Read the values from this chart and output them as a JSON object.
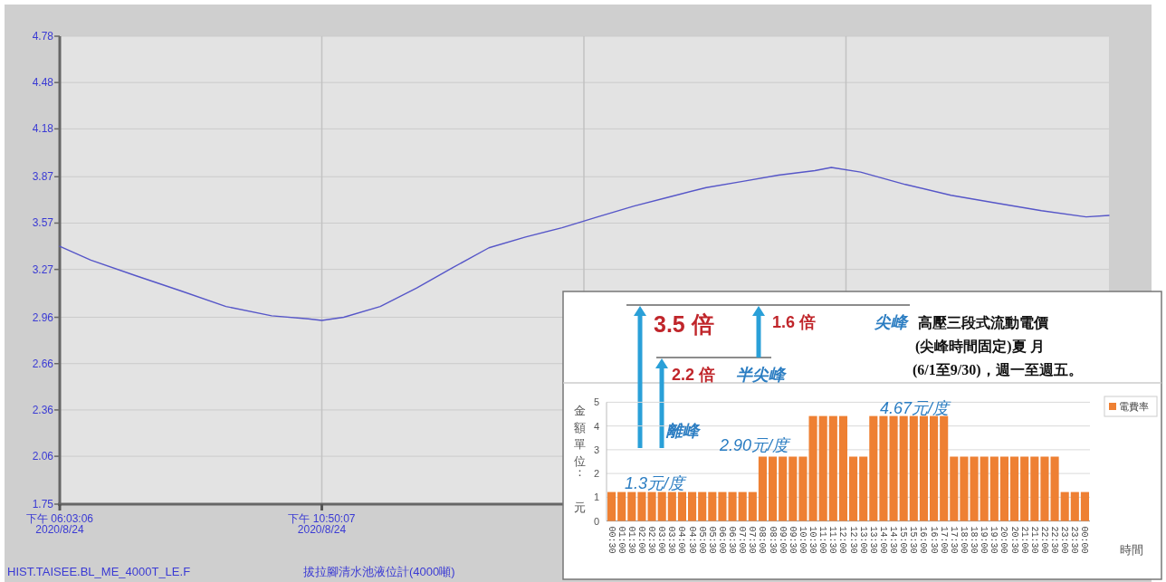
{
  "chart_data": [
    {
      "type": "line",
      "color": "#5656c8",
      "grid": true,
      "x": [
        "2020-08-24T18:03",
        "2020-08-24T18:37",
        "2020-08-24T19:26",
        "2020-08-24T20:16",
        "2020-08-24T21:05",
        "2020-08-24T21:55",
        "2020-08-24T22:35",
        "2020-08-24T22:50",
        "2020-08-24T23:14",
        "2020-08-24T23:54",
        "2020-08-25T00:34",
        "2020-08-25T01:13",
        "2020-08-25T01:53",
        "2020-08-25T02:33",
        "2020-08-25T03:13",
        "2020-08-25T03:52",
        "2020-08-25T04:32",
        "2020-08-25T05:11",
        "2020-08-25T05:51",
        "2020-08-25T06:31",
        "2020-08-25T07:10",
        "2020-08-25T07:50",
        "2020-08-25T08:08",
        "2020-08-25T08:40",
        "2020-08-25T09:29",
        "2020-08-25T10:19",
        "2020-08-25T11:08",
        "2020-08-25T11:58",
        "2020-08-25T12:47",
        "2020-08-25T13:12"
      ],
      "values": [
        3.42,
        3.33,
        3.23,
        3.13,
        3.03,
        2.97,
        2.95,
        2.94,
        2.96,
        3.03,
        3.15,
        3.28,
        3.41,
        3.48,
        3.54,
        3.61,
        3.68,
        3.74,
        3.8,
        3.84,
        3.88,
        3.91,
        3.93,
        3.9,
        3.82,
        3.75,
        3.7,
        3.65,
        3.61,
        3.62
      ],
      "xlim": [
        "2020-08-24T18:03",
        "2020-08-25T13:12"
      ],
      "xticks": [
        {
          "value": "2020-08-24T18:03",
          "label": "下午 06:03:06\n2020/8/24"
        },
        {
          "value": "2020-08-24T22:50",
          "label": "下午 10:50:07\n2020/8/24"
        },
        {
          "value": "2020-08-25T03:37",
          "label": null
        },
        {
          "value": "2020-08-25T08:24",
          "label": null
        }
      ],
      "ylim": [
        1.75,
        4.78
      ],
      "yticks": [
        1.75,
        2.06,
        2.36,
        2.66,
        2.96,
        3.27,
        3.57,
        3.87,
        4.18,
        4.48,
        4.78
      ],
      "annotations": [
        "HIST.TAISEE.BL_ME_4000T_LE.F",
        "拔拉腳清水池液位計(4000噸)"
      ]
    },
    {
      "type": "bar",
      "grid": "y",
      "legend": "top right",
      "ylabel": "金額單位：元",
      "xlabel": "時間",
      "categories": [
        "00:30",
        "01:00",
        "01:30",
        "02:00",
        "02:30",
        "03:00",
        "03:30",
        "04:00",
        "04:30",
        "05:00",
        "05:30",
        "06:00",
        "06:30",
        "07:00",
        "07:30",
        "08:00",
        "08:30",
        "09:00",
        "09:30",
        "10:00",
        "10:30",
        "11:00",
        "11:30",
        "12:00",
        "12:30",
        "13:00",
        "13:30",
        "14:00",
        "14:30",
        "15:00",
        "15:30",
        "16:00",
        "16:30",
        "17:00",
        "17:30",
        "18:00",
        "18:30",
        "19:00",
        "19:30",
        "20:00",
        "20:30",
        "21:00",
        "21:30",
        "22:00",
        "22:30",
        "23:00",
        "23:30",
        "00:00"
      ],
      "series": [
        {
          "name": "電費率",
          "color": "#ee8033",
          "values": [
            1.22,
            1.22,
            1.22,
            1.22,
            1.22,
            1.22,
            1.22,
            1.22,
            1.22,
            1.22,
            1.22,
            1.22,
            1.22,
            1.22,
            1.22,
            2.71,
            2.71,
            2.71,
            2.71,
            2.71,
            4.42,
            4.42,
            4.42,
            4.42,
            2.71,
            2.71,
            4.42,
            4.42,
            4.42,
            4.42,
            4.42,
            4.42,
            4.42,
            4.42,
            2.71,
            2.71,
            2.71,
            2.71,
            2.71,
            2.71,
            2.71,
            2.71,
            2.71,
            2.71,
            2.71,
            1.22,
            1.22,
            1.22
          ]
        }
      ],
      "ylim": [
        0,
        5
      ],
      "yticks": [
        0,
        1,
        2,
        3,
        4,
        5
      ],
      "annotations": [
        "3.5 倍",
        "1.6 倍",
        "2.2 倍",
        "半尖峰",
        "離峰",
        "尖峰",
        "高壓三段式流動電價",
        "(尖峰時間固定)夏 月",
        "(6/1至9/30)，週一至週五。",
        "1.3元/度",
        "2.90元/度",
        "4.67元/度"
      ]
    }
  ]
}
